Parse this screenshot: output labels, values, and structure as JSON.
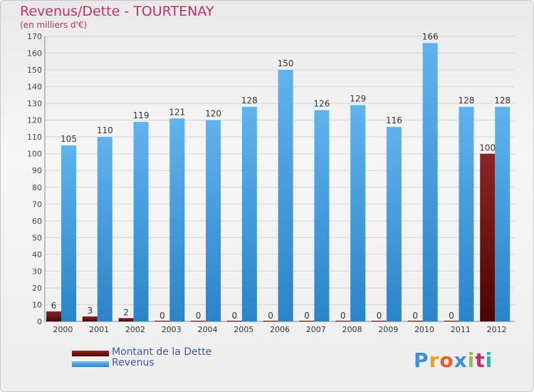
{
  "title": "Revenus/Dette - TOURTENAY",
  "subtitle": "(en milliers d'€)",
  "logo_text": "Proxiti",
  "legend": [
    {
      "label": "Montant de la Dette",
      "color": "#6a0c0c"
    },
    {
      "label": "Revenus",
      "color": "#3f9ee0"
    }
  ],
  "chart_data": {
    "type": "bar",
    "title": "Revenus/Dette - TOURTENAY",
    "ylabel": "(en milliers d'€)",
    "xlabel": "",
    "ylim": [
      0,
      170
    ],
    "ytick_step": 10,
    "grid": true,
    "categories": [
      "2000",
      "2001",
      "2002",
      "2003",
      "2004",
      "2005",
      "2006",
      "2007",
      "2008",
      "2009",
      "2010",
      "2011",
      "2012"
    ],
    "series": [
      {
        "name": "Montant de la Dette",
        "color": "#7a1a1a",
        "values": [
          6,
          3,
          2,
          0,
          0,
          0,
          0,
          0,
          0,
          0,
          0,
          0,
          100
        ]
      },
      {
        "name": "Revenus",
        "color": "#4aa3e6",
        "values": [
          105,
          110,
          119,
          121,
          120,
          128,
          150,
          126,
          129,
          116,
          166,
          128,
          128
        ]
      }
    ]
  }
}
